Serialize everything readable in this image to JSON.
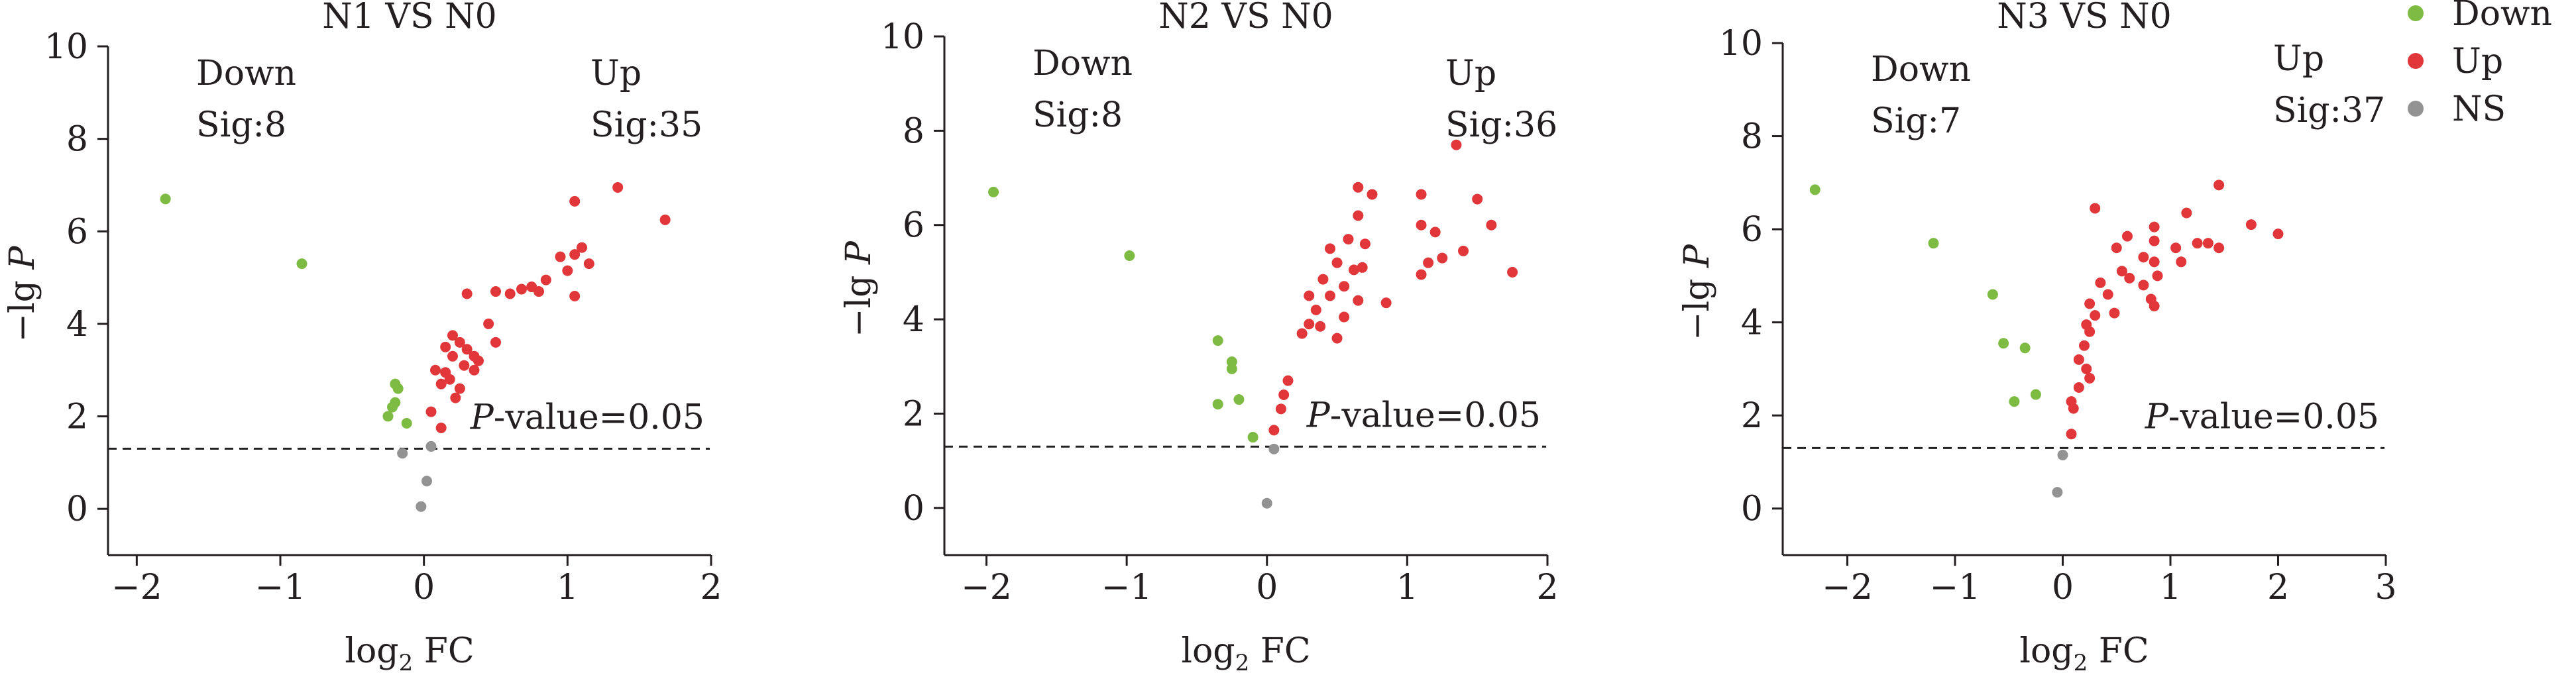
{
  "chart_data": [
    {
      "type": "scatter",
      "title": "N1 VS N0",
      "xlabel": "log2 FC",
      "ylabel": "-lg P",
      "xlim": [
        -2.2,
        2
      ],
      "ylim": [
        -1,
        10
      ],
      "xticks": [
        -2,
        -1,
        0,
        1,
        2
      ],
      "yticks": [
        0,
        2,
        4,
        6,
        8,
        10
      ],
      "threshold": {
        "value": 1.3,
        "label_italic": "P",
        "label_rest": "-value=0.05"
      },
      "down_annotation": {
        "line1": "Down",
        "line2": "Sig:8"
      },
      "up_annotation": {
        "line1": "Up",
        "line2": "Sig:35"
      },
      "series": [
        {
          "name": "Down",
          "points": [
            [
              -1.8,
              6.7
            ],
            [
              -0.85,
              5.3
            ],
            [
              -0.2,
              2.7
            ],
            [
              -0.18,
              2.6
            ],
            [
              -0.2,
              2.3
            ],
            [
              -0.22,
              2.2
            ],
            [
              -0.25,
              2.0
            ],
            [
              -0.12,
              1.85
            ]
          ]
        },
        {
          "name": "Up",
          "points": [
            [
              1.35,
              6.95
            ],
            [
              1.05,
              6.65
            ],
            [
              1.68,
              6.25
            ],
            [
              1.1,
              5.65
            ],
            [
              1.05,
              5.5
            ],
            [
              0.95,
              5.45
            ],
            [
              1.15,
              5.3
            ],
            [
              1.0,
              5.15
            ],
            [
              0.85,
              4.95
            ],
            [
              0.75,
              4.8
            ],
            [
              0.6,
              4.65
            ],
            [
              0.68,
              4.75
            ],
            [
              0.8,
              4.7
            ],
            [
              1.05,
              4.6
            ],
            [
              0.5,
              4.7
            ],
            [
              0.3,
              4.65
            ],
            [
              0.45,
              4.0
            ],
            [
              0.5,
              3.6
            ],
            [
              0.2,
              3.75
            ],
            [
              0.25,
              3.6
            ],
            [
              0.3,
              3.45
            ],
            [
              0.35,
              3.3
            ],
            [
              0.38,
              3.2
            ],
            [
              0.15,
              3.5
            ],
            [
              0.2,
              3.3
            ],
            [
              0.28,
              3.1
            ],
            [
              0.35,
              3.0
            ],
            [
              0.08,
              3.0
            ],
            [
              0.15,
              2.95
            ],
            [
              0.18,
              2.8
            ],
            [
              0.12,
              2.7
            ],
            [
              0.25,
              2.6
            ],
            [
              0.22,
              2.4
            ],
            [
              0.05,
              2.1
            ],
            [
              0.12,
              1.75
            ]
          ]
        },
        {
          "name": "NS",
          "points": [
            [
              -0.15,
              1.2
            ],
            [
              0.05,
              1.35
            ],
            [
              0.02,
              0.6
            ],
            [
              -0.02,
              0.05
            ]
          ]
        }
      ]
    },
    {
      "type": "scatter",
      "title": "N2 VS N0",
      "xlabel": "log2 FC",
      "ylabel": "-lg P",
      "xlim": [
        -2.3,
        2
      ],
      "ylim": [
        -1,
        10
      ],
      "xticks": [
        -2,
        -1,
        0,
        1,
        2
      ],
      "yticks": [
        0,
        2,
        4,
        6,
        8,
        10
      ],
      "threshold": {
        "value": 1.3,
        "label_italic": "P",
        "label_rest": "-value=0.05"
      },
      "down_annotation": {
        "line1": "Down",
        "line2": "Sig:8"
      },
      "up_annotation": {
        "line1": "Up",
        "line2": "Sig:36"
      },
      "series": [
        {
          "name": "Down",
          "points": [
            [
              -1.95,
              6.7
            ],
            [
              -0.98,
              5.35
            ],
            [
              -0.35,
              3.55
            ],
            [
              -0.25,
              3.1
            ],
            [
              -0.25,
              2.95
            ],
            [
              -0.35,
              2.2
            ],
            [
              -0.2,
              2.3
            ],
            [
              -0.1,
              1.5
            ]
          ]
        },
        {
          "name": "Up",
          "points": [
            [
              1.35,
              7.7
            ],
            [
              0.65,
              6.8
            ],
            [
              0.75,
              6.65
            ],
            [
              1.1,
              6.65
            ],
            [
              1.5,
              6.55
            ],
            [
              0.65,
              6.2
            ],
            [
              1.1,
              6.0
            ],
            [
              1.2,
              5.85
            ],
            [
              1.6,
              6.0
            ],
            [
              0.58,
              5.7
            ],
            [
              0.45,
              5.5
            ],
            [
              0.7,
              5.6
            ],
            [
              1.4,
              5.45
            ],
            [
              1.25,
              5.3
            ],
            [
              0.5,
              5.2
            ],
            [
              0.62,
              5.05
            ],
            [
              0.68,
              5.1
            ],
            [
              1.15,
              5.2
            ],
            [
              1.1,
              4.95
            ],
            [
              1.75,
              5.0
            ],
            [
              0.4,
              4.85
            ],
            [
              0.55,
              4.7
            ],
            [
              0.45,
              4.5
            ],
            [
              0.3,
              4.5
            ],
            [
              0.65,
              4.4
            ],
            [
              0.85,
              4.35
            ],
            [
              0.35,
              4.2
            ],
            [
              0.55,
              4.05
            ],
            [
              0.38,
              3.85
            ],
            [
              0.25,
              3.7
            ],
            [
              0.5,
              3.6
            ],
            [
              0.15,
              2.7
            ],
            [
              0.12,
              2.4
            ],
            [
              0.1,
              2.1
            ],
            [
              0.05,
              1.65
            ],
            [
              0.3,
              3.9
            ]
          ]
        },
        {
          "name": "NS",
          "points": [
            [
              0.05,
              1.25
            ],
            [
              0.0,
              0.1
            ]
          ]
        }
      ]
    },
    {
      "type": "scatter",
      "title": "N3 VS N0",
      "xlabel": "log2 FC",
      "ylabel": "-lg P",
      "xlim": [
        -2.6,
        3
      ],
      "ylim": [
        -1,
        10
      ],
      "xticks": [
        -2,
        -1,
        0,
        1,
        2,
        3
      ],
      "yticks": [
        0,
        2,
        4,
        6,
        8,
        10
      ],
      "threshold": {
        "value": 1.3,
        "label_italic": "P",
        "label_rest": "-value=0.05"
      },
      "down_annotation": {
        "line1": "Down",
        "line2": "Sig:7"
      },
      "up_annotation": {
        "line1": "Up",
        "line2": "Sig:37"
      },
      "series": [
        {
          "name": "Down",
          "points": [
            [
              -2.3,
              6.85
            ],
            [
              -1.2,
              5.7
            ],
            [
              -0.65,
              4.6
            ],
            [
              -0.55,
              3.55
            ],
            [
              -0.35,
              3.45
            ],
            [
              -0.45,
              2.3
            ],
            [
              -0.25,
              2.45
            ]
          ]
        },
        {
          "name": "Up",
          "points": [
            [
              1.45,
              6.95
            ],
            [
              0.3,
              6.45
            ],
            [
              1.15,
              6.35
            ],
            [
              0.85,
              6.05
            ],
            [
              1.75,
              6.1
            ],
            [
              2.0,
              5.9
            ],
            [
              0.6,
              5.85
            ],
            [
              1.25,
              5.7
            ],
            [
              1.35,
              5.7
            ],
            [
              0.5,
              5.6
            ],
            [
              0.85,
              5.75
            ],
            [
              1.45,
              5.6
            ],
            [
              1.05,
              5.6
            ],
            [
              0.75,
              5.4
            ],
            [
              0.85,
              5.3
            ],
            [
              1.1,
              5.3
            ],
            [
              0.55,
              5.1
            ],
            [
              0.62,
              4.95
            ],
            [
              0.88,
              5.0
            ],
            [
              0.35,
              4.85
            ],
            [
              0.75,
              4.8
            ],
            [
              0.82,
              4.5
            ],
            [
              0.85,
              4.35
            ],
            [
              0.42,
              4.6
            ],
            [
              0.25,
              4.4
            ],
            [
              0.3,
              4.15
            ],
            [
              0.48,
              4.2
            ],
            [
              0.22,
              3.95
            ],
            [
              0.25,
              3.8
            ],
            [
              0.2,
              3.5
            ],
            [
              0.15,
              3.2
            ],
            [
              0.22,
              3.0
            ],
            [
              0.25,
              2.8
            ],
            [
              0.15,
              2.6
            ],
            [
              0.08,
              2.3
            ],
            [
              0.1,
              2.15
            ],
            [
              0.08,
              1.6
            ]
          ]
        },
        {
          "name": "NS",
          "points": [
            [
              0.0,
              1.15
            ],
            [
              -0.05,
              0.35
            ]
          ]
        }
      ]
    }
  ],
  "legend": [
    {
      "label": "Down",
      "color": "#7dbb42"
    },
    {
      "label": "Up",
      "color": "#e2373a"
    },
    {
      "label": "NS",
      "color": "#939393"
    }
  ],
  "colors": {
    "Down": "#7dbb42",
    "Up": "#e2373a",
    "NS": "#939393",
    "axis": "#231f20"
  },
  "axis_text": {
    "ylabel_prefix": "−lg ",
    "ylabel_italic": "P",
    "xlabel_main": "log",
    "xlabel_sub": "2",
    "xlabel_rest": " FC"
  }
}
